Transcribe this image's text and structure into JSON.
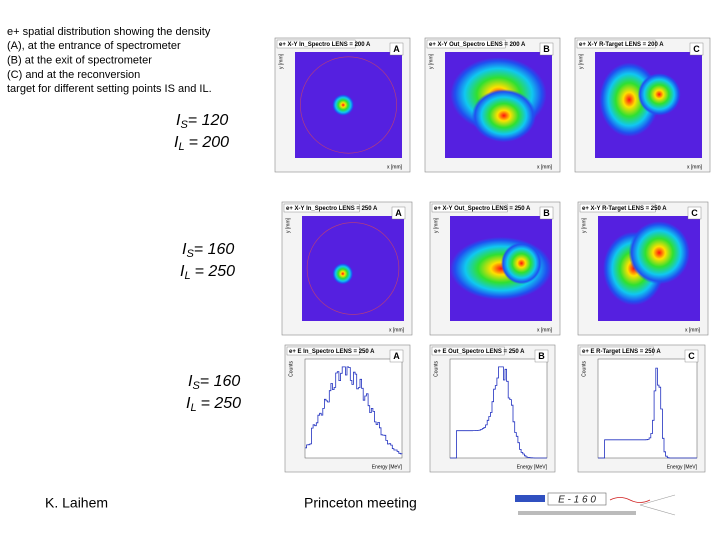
{
  "intro": [
    "e+ spatial distribution showing the density",
    "(A), at the entrance of spectrometer",
    "(B) at the exit of spectrometer",
    "(C) and at the reconversion",
    "target for different setting points IS and IL."
  ],
  "settings": [
    {
      "current": "I",
      "sub1": "S",
      "value1": "= 120",
      "sub2": "L",
      "value2": "= 200"
    },
    {
      "current": "I",
      "sub1": "S",
      "value1": "= 160",
      "sub2": "L",
      "value2": "= 250"
    },
    {
      "current": "I",
      "sub1": "S",
      "value1": "= 160",
      "sub2": "L",
      "value2": "= 250"
    }
  ],
  "panels": [
    {
      "title": "e+ X-Y In_Spectro LENS = 200 A",
      "letter": "A",
      "x_label": "x [mm]",
      "y_label": "y [mm]"
    },
    {
      "title": "e+ X-Y Out_Spectro LENS = 200 A",
      "letter": "B",
      "x_label": "x [mm]",
      "y_label": "y [mm]"
    },
    {
      "title": "e+ X-Y R-Target LENS = 200 A",
      "letter": "C",
      "x_label": "x [mm]",
      "y_label": "y [mm]"
    },
    {
      "title": "e+ X-Y In_Spectro LENS = 250 A",
      "letter": "A",
      "x_label": "x [mm]",
      "y_label": "y [mm]"
    },
    {
      "title": "e+ X-Y Out_Spectro LENS = 250 A",
      "letter": "B",
      "x_label": "x [mm]",
      "y_label": "y [mm]"
    },
    {
      "title": "e+ X-Y R-Target LENS = 250 A",
      "letter": "C",
      "x_label": "x [mm]",
      "y_label": "y [mm]"
    },
    {
      "title": "e+ E In_Spectro LENS = 250 A",
      "letter": "A",
      "x_label": "Energy [MeV]",
      "y_label": "Counts"
    },
    {
      "title": "e+ E Out_Spectro LENS = 250 A",
      "letter": "B",
      "x_label": "Energy [MeV]",
      "y_label": "Counts"
    },
    {
      "title": "e+ E R-Target LENS = 250 A",
      "letter": "C",
      "x_label": "Energy [MeV]",
      "y_label": "Counts"
    }
  ],
  "footer": {
    "author": "K. Laihem",
    "meeting": "Princeton meeting",
    "logo": "E - 1 6 0"
  }
}
